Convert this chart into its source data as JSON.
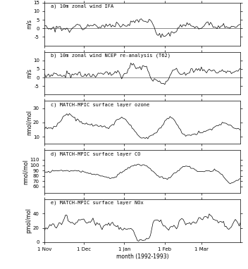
{
  "title_a": "a) 10m zonal wind IFA",
  "title_b": "b) 10m zonal wind NCEP re-analysis (T62)",
  "title_c": "c) MATCH-MPIC surface layer ozone",
  "title_d": "d) MATCH-MPIC surface layer CO",
  "title_e": "e) MATCH-MPIC surface layer NOx",
  "ylabel_a": "m/s",
  "ylabel_b": "m/s",
  "ylabel_c": "nmol/mol",
  "ylabel_d": "nmol/mol",
  "ylabel_e": "pmol/mol",
  "xlabel": "month (1992-1993)",
  "ylim_a": [
    -10,
    15
  ],
  "ylim_b": [
    -10,
    15
  ],
  "ylim_c": [
    5,
    35
  ],
  "ylim_d": [
    48,
    128
  ],
  "ylim_e": [
    0,
    60
  ],
  "yticks_a": [
    -5,
    0,
    5,
    10,
    15
  ],
  "yticks_b": [
    -5,
    0,
    5,
    10
  ],
  "yticks_c": [
    10,
    20,
    30
  ],
  "yticks_d": [
    60,
    70,
    80,
    90,
    100,
    110
  ],
  "yticks_e": [
    0,
    20,
    40
  ],
  "xtick_labels": [
    "1 Nov",
    "1 Dec",
    "1 Jan",
    "1 Feb",
    "1 Mar"
  ],
  "xtick_positions": [
    0,
    30,
    61,
    92,
    120
  ],
  "n_points": 151,
  "background_color": "#ffffff",
  "plot_bg": "#ffffff",
  "line_color": "#000000",
  "hline_color": "#888888"
}
